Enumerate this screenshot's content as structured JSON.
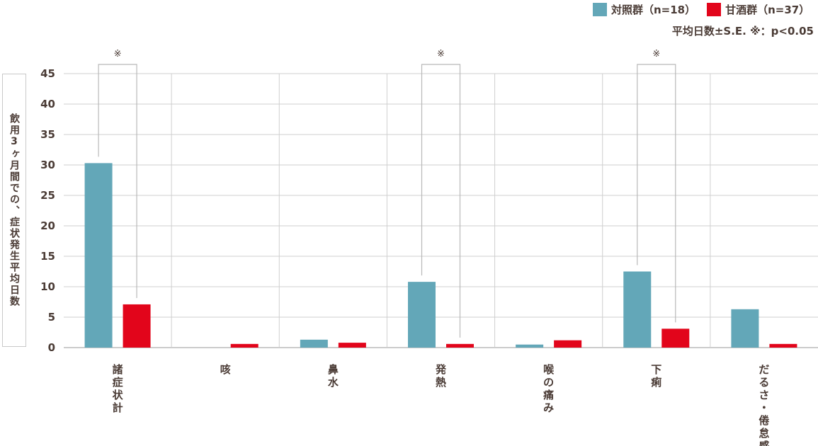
{
  "legend": [
    {
      "label": "対照群（n=18）",
      "color": "#63a7b8"
    },
    {
      "label": "甘酒群（n=37）",
      "color": "#e2051b"
    }
  ],
  "note": "平均日数±S.E. ※：p<0.05",
  "chart_data": {
    "type": "bar",
    "ylabel": "飲用3ヶ月間での、症状発生平均日数",
    "ylim": [
      0,
      45
    ],
    "yticks": [
      0,
      5,
      10,
      15,
      20,
      25,
      30,
      35,
      40,
      45
    ],
    "grid": true,
    "legend_position": "top-right",
    "categories": [
      "諸症状計",
      "咳",
      "鼻水",
      "発熱",
      "喉の痛み",
      "下痢",
      "だるさ・倦怠感"
    ],
    "series": [
      {
        "name": "対照群（n=18）",
        "color": "#63a7b8",
        "values": [
          30.3,
          0,
          1.3,
          10.8,
          0.5,
          12.5,
          6.3
        ]
      },
      {
        "name": "甘酒群（n=37）",
        "color": "#e2051b",
        "values": [
          7.1,
          0.6,
          0.8,
          0.6,
          1.2,
          3.1,
          0.6
        ]
      }
    ],
    "significance": [
      {
        "category": "諸症状計",
        "marker": "※"
      },
      {
        "category": "発熱",
        "marker": "※"
      },
      {
        "category": "下痢",
        "marker": "※"
      }
    ]
  }
}
